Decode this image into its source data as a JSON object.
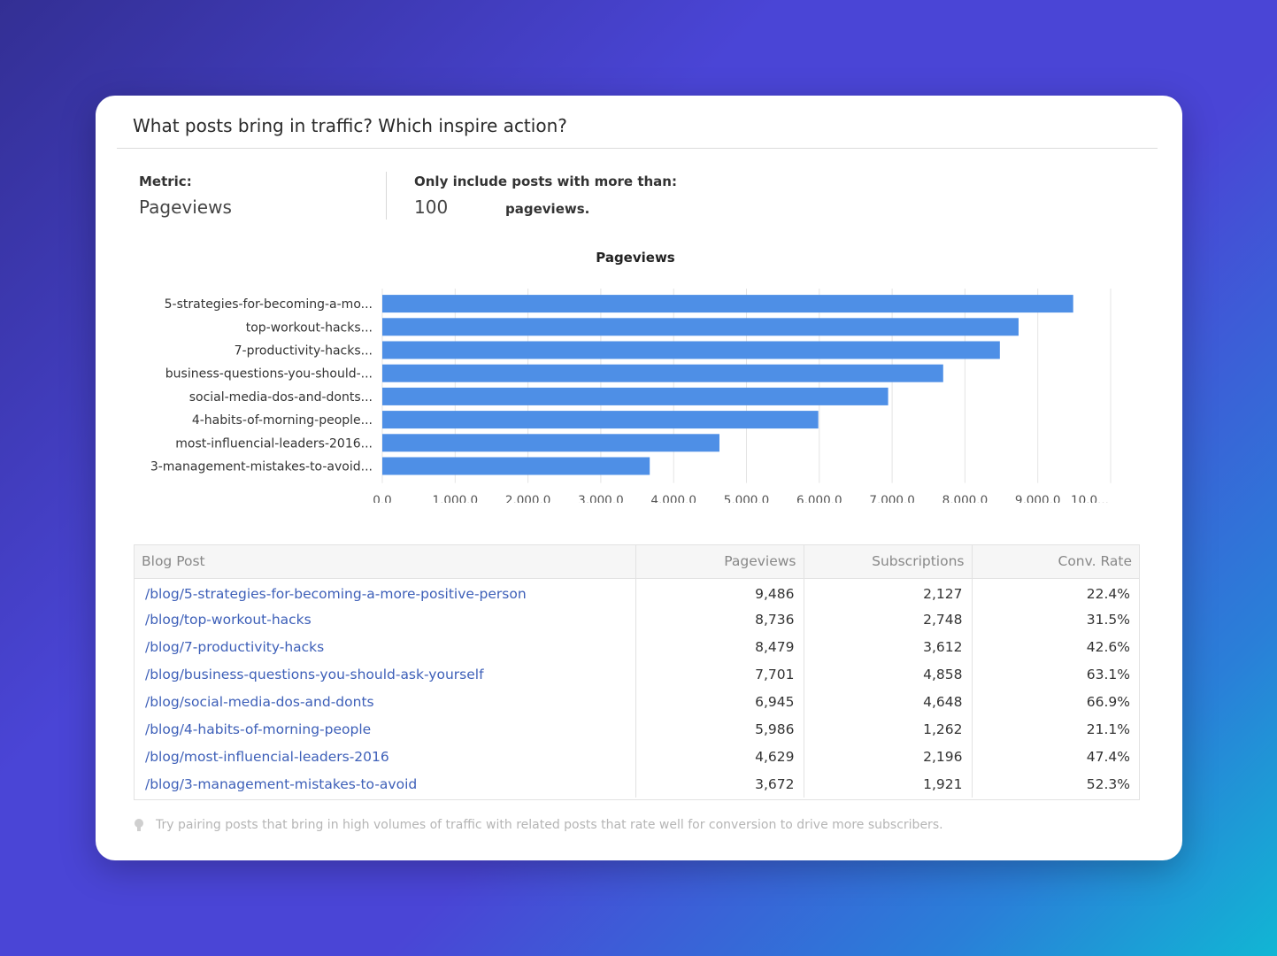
{
  "card": {
    "title": "What posts bring in traffic? Which inspire action?"
  },
  "controls": {
    "metric_label": "Metric:",
    "metric_value": "Pageviews",
    "threshold_label": "Only include posts with more than:",
    "threshold_value": "100",
    "threshold_suffix": "pageviews."
  },
  "chart_data": {
    "type": "bar",
    "orientation": "horizontal",
    "title": "Pageviews",
    "categories": [
      "5-strategies-for-becoming-a-mo...",
      "top-workout-hacks...",
      "7-productivity-hacks...",
      "business-questions-you-should-...",
      "social-media-dos-and-donts...",
      "4-habits-of-morning-people...",
      "most-influencial-leaders-2016...",
      "3-management-mistakes-to-avoid..."
    ],
    "values": [
      9486,
      8736,
      8479,
      7701,
      6945,
      5986,
      4629,
      3672
    ],
    "xlim": [
      0,
      10000
    ],
    "ticks": [
      "0.0",
      "1,000.0",
      "2,000.0",
      "3,000.0",
      "4,000.0",
      "5,000.0",
      "6,000.0",
      "7,000.0",
      "8,000.0",
      "9,000.0",
      "10,0..."
    ],
    "grid": true,
    "color": "#4e8fe6"
  },
  "table": {
    "headers": [
      "Blog Post",
      "Pageviews",
      "Subscriptions",
      "Conv. Rate"
    ],
    "rows": [
      [
        "/blog/5-strategies-for-becoming-a-more-positive-person",
        "9,486",
        "2,127",
        "22.4%"
      ],
      [
        "/blog/top-workout-hacks",
        "8,736",
        "2,748",
        "31.5%"
      ],
      [
        "/blog/7-productivity-hacks",
        "8,479",
        "3,612",
        "42.6%"
      ],
      [
        "/blog/business-questions-you-should-ask-yourself",
        "7,701",
        "4,858",
        "63.1%"
      ],
      [
        "/blog/social-media-dos-and-donts",
        "6,945",
        "4,648",
        "66.9%"
      ],
      [
        "/blog/4-habits-of-morning-people",
        "5,986",
        "1,262",
        "21.1%"
      ],
      [
        "/blog/most-influencial-leaders-2016",
        "4,629",
        "2,196",
        "47.4%"
      ],
      [
        "/blog/3-management-mistakes-to-avoid",
        "3,672",
        "1,921",
        "52.3%"
      ]
    ]
  },
  "tip": {
    "icon": "lightbulb-icon",
    "text": "Try pairing posts that bring in high volumes of traffic with related posts that rate well for conversion to drive more subscribers."
  }
}
